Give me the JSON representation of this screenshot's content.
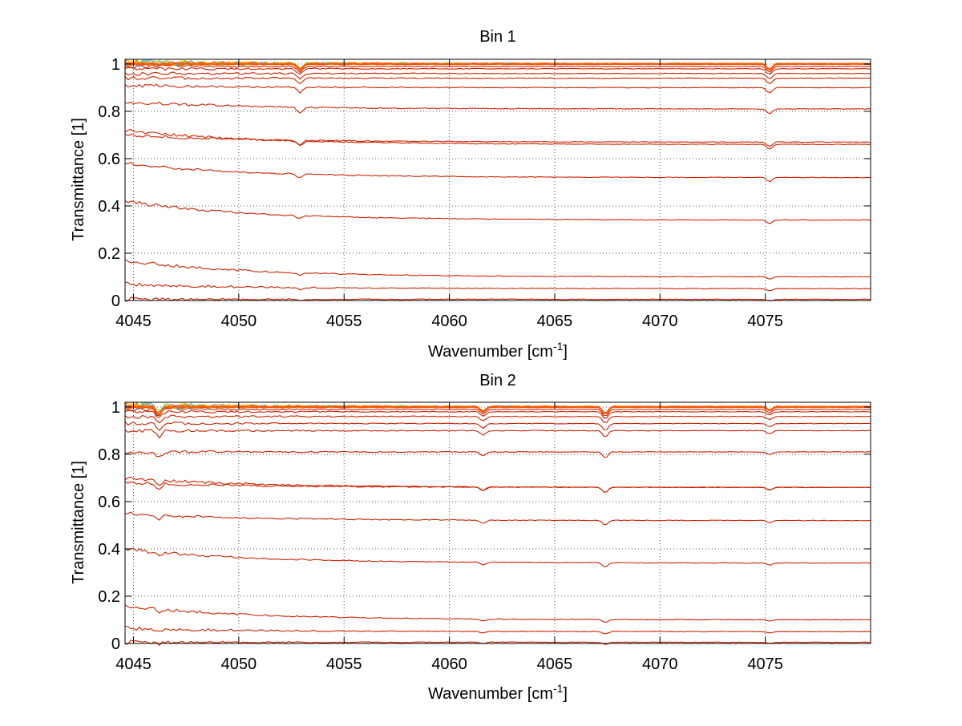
{
  "chart_data": [
    {
      "type": "line",
      "title": "Bin 1",
      "xlabel": "Wavenumber [cm",
      "xlabel_sup": "-1",
      "xlabel_end": "]",
      "ylabel": "Transmittance [1]",
      "xlim": [
        4044.6,
        4080
      ],
      "ylim": [
        0,
        1.02
      ],
      "xticks": [
        4045,
        4050,
        4055,
        4060,
        4065,
        4070,
        4075
      ],
      "xtick_labels": [
        "4045",
        "4050",
        "4055",
        "4060",
        "4065",
        "4070",
        "4075"
      ],
      "yticks": [
        0,
        0.2,
        0.4,
        0.6,
        0.8,
        1
      ],
      "ytick_labels": [
        "0",
        "0.2",
        "0.4",
        "0.6",
        "0.8",
        "1"
      ],
      "grid": true,
      "line_color": "#cc2200",
      "top_colors": [
        "#ff9900",
        "#ffcc00",
        "#33aaff",
        "#66cc44",
        "#ff6600"
      ],
      "series": [
        {
          "y_start": 0.005,
          "y_end": 0.005
        },
        {
          "y_start": 0.07,
          "y_end": 0.05
        },
        {
          "y_start": 0.17,
          "y_end": 0.1
        },
        {
          "y_start": 0.42,
          "y_end": 0.34
        },
        {
          "y_start": 0.58,
          "y_end": 0.52
        },
        {
          "y_start": 0.7,
          "y_end": 0.67
        },
        {
          "y_start": 0.72,
          "y_end": 0.66
        },
        {
          "y_start": 0.84,
          "y_end": 0.81
        },
        {
          "y_start": 0.91,
          "y_end": 0.9
        },
        {
          "y_start": 0.94,
          "y_end": 0.94
        },
        {
          "y_start": 0.96,
          "y_end": 0.96
        },
        {
          "y_start": 0.98,
          "y_end": 0.98
        },
        {
          "y_start": 0.99,
          "y_end": 0.99
        },
        {
          "y_start": 1.0,
          "y_end": 1.0
        }
      ],
      "dips": [
        {
          "x": 4052.9,
          "depth": 0.025
        },
        {
          "x": 4075.2,
          "depth": 0.025
        }
      ]
    },
    {
      "type": "line",
      "title": "Bin 2",
      "xlabel": "Wavenumber [cm",
      "xlabel_sup": "-1",
      "xlabel_end": "]",
      "ylabel": "Transmittance [1]",
      "xlim": [
        4044.6,
        4080
      ],
      "ylim": [
        0,
        1.02
      ],
      "xticks": [
        4045,
        4050,
        4055,
        4060,
        4065,
        4070,
        4075
      ],
      "xtick_labels": [
        "4045",
        "4050",
        "4055",
        "4060",
        "4065",
        "4070",
        "4075"
      ],
      "yticks": [
        0,
        0.2,
        0.4,
        0.6,
        0.8,
        1
      ],
      "ytick_labels": [
        "0",
        "0.2",
        "0.4",
        "0.6",
        "0.8",
        "1"
      ],
      "grid": true,
      "line_color": "#cc2200",
      "top_colors": [
        "#ff9900",
        "#ffcc00",
        "#33aaff",
        "#66cc44",
        "#ff6600"
      ],
      "series": [
        {
          "y_start": 0.005,
          "y_end": 0.005
        },
        {
          "y_start": 0.065,
          "y_end": 0.05
        },
        {
          "y_start": 0.16,
          "y_end": 0.1
        },
        {
          "y_start": 0.4,
          "y_end": 0.34
        },
        {
          "y_start": 0.55,
          "y_end": 0.52
        },
        {
          "y_start": 0.68,
          "y_end": 0.66
        },
        {
          "y_start": 0.7,
          "y_end": 0.66
        },
        {
          "y_start": 0.81,
          "y_end": 0.81
        },
        {
          "y_start": 0.9,
          "y_end": 0.9
        },
        {
          "y_start": 0.93,
          "y_end": 0.93
        },
        {
          "y_start": 0.96,
          "y_end": 0.96
        },
        {
          "y_start": 0.98,
          "y_end": 0.98
        },
        {
          "y_start": 0.99,
          "y_end": 0.99
        },
        {
          "y_start": 1.0,
          "y_end": 1.0
        }
      ],
      "dips": [
        {
          "x": 4046.2,
          "depth": 0.03
        },
        {
          "x": 4061.6,
          "depth": 0.02
        },
        {
          "x": 4067.4,
          "depth": 0.03
        },
        {
          "x": 4075.2,
          "depth": 0.015
        }
      ]
    }
  ]
}
